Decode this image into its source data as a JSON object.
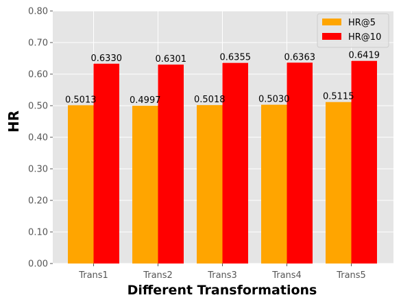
{
  "chart_data": {
    "type": "bar",
    "categories": [
      "Trans1",
      "Trans2",
      "Trans3",
      "Trans4",
      "Trans5"
    ],
    "series": [
      {
        "name": "HR@5",
        "values": [
          0.5013,
          0.4997,
          0.5018,
          0.503,
          0.5115
        ],
        "labels": [
          "0.5013",
          "0.4997",
          "0.5018",
          "0.5030",
          "0.5115"
        ],
        "color": "#FFA500"
      },
      {
        "name": "HR@10",
        "values": [
          0.633,
          0.6301,
          0.6355,
          0.6363,
          0.6419
        ],
        "labels": [
          "0.6330",
          "0.6301",
          "0.6355",
          "0.6363",
          "0.6419"
        ],
        "color": "#FF0000"
      }
    ],
    "xlabel": "Different Transformations",
    "ylabel": "HR",
    "ylim": [
      0,
      0.8
    ],
    "yticks": [
      0.0,
      0.1,
      0.2,
      0.3,
      0.4,
      0.5,
      0.6,
      0.7,
      0.8
    ],
    "ytick_labels": [
      "0.00",
      "0.10",
      "0.20",
      "0.30",
      "0.40",
      "0.50",
      "0.60",
      "0.70",
      "0.80"
    ],
    "grid": true,
    "legend_position": "top-right",
    "plot_background": "#E5E5E5",
    "grid_color": "#FFFFFF"
  }
}
